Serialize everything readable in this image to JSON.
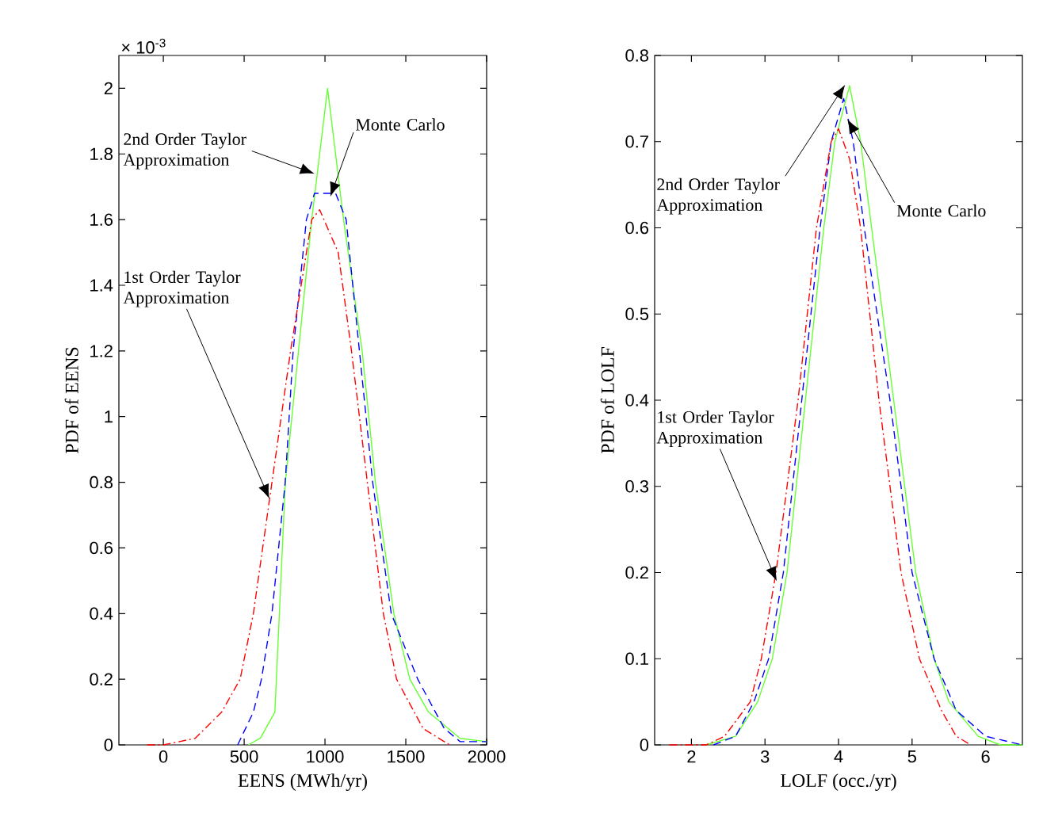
{
  "chart_data": [
    {
      "type": "line",
      "xlabel": "EENS (MWh/yr)",
      "ylabel": "PDF of EENS",
      "xlim": [
        -275,
        2000
      ],
      "ylim": [
        0,
        2.1
      ],
      "xticks": [
        0,
        500,
        1000,
        1500,
        2000
      ],
      "yticks": [
        0,
        0.2,
        0.4,
        0.6,
        0.8,
        1,
        1.2,
        1.4,
        1.6,
        1.8,
        2
      ],
      "marker": "none",
      "series": [
        {
          "color": "#66ff33",
          "line_style": "solid",
          "x": [
            525,
            600,
            690,
            755,
            836,
            918,
            1016,
            1115,
            1230,
            1312,
            1426,
            1525,
            1640,
            1836,
            2000
          ],
          "values": [
            0,
            0.02,
            0.1,
            0.8,
            1.2,
            1.6,
            2.0,
            1.6,
            1.2,
            0.8,
            0.4,
            0.2,
            0.1,
            0.02,
            0.01
          ]
        },
        {
          "color": "#0000ff",
          "line_style": "dashed",
          "x": [
            460,
            557,
            607,
            672,
            754,
            803,
            885,
            935,
            1066,
            1131,
            1213,
            1295,
            1410,
            1574,
            1738,
            1836,
            2000
          ],
          "values": [
            0,
            0.1,
            0.2,
            0.4,
            0.8,
            1.2,
            1.6,
            1.68,
            1.68,
            1.6,
            1.2,
            0.8,
            0.4,
            0.2,
            0.05,
            0.01,
            0.01
          ]
        },
        {
          "color": "#ff0000",
          "line_style": "dashdot",
          "x": [
            -100,
            0,
            197,
            361,
            475,
            557,
            672,
            787,
            918,
            967,
            1082,
            1164,
            1262,
            1361,
            1443,
            1607,
            1771
          ],
          "values": [
            0,
            0,
            0.02,
            0.1,
            0.2,
            0.4,
            0.8,
            1.2,
            1.6,
            1.63,
            1.5,
            1.2,
            0.8,
            0.4,
            0.2,
            0.05,
            0
          ]
        }
      ],
      "annotations": [
        "× 10$^{-3}$",
        {
          "text": "2nd Order Taylor Approximation",
          "x": 935,
          "y": 1.74
        },
        {
          "text": "Monte Carlo",
          "x": 1033,
          "y": 1.67
        },
        {
          "text": "1st Order Taylor Approximation",
          "x": 656,
          "y": 0.75
        }
      ]
    },
    {
      "type": "line",
      "xlabel": "LOLF (occ./yr)",
      "ylabel": "PDF of LOLF",
      "xlim": [
        1.5,
        6.5
      ],
      "ylim": [
        0,
        0.8
      ],
      "xticks": [
        2,
        3,
        4,
        5,
        6
      ],
      "yticks": [
        0,
        0.1,
        0.2,
        0.3,
        0.4,
        0.5,
        0.6,
        0.7,
        0.8
      ],
      "marker": "none",
      "series": [
        {
          "color": "#66ff33",
          "line_style": "solid",
          "x": [
            2.2,
            2.6,
            2.9,
            3.1,
            3.3,
            3.55,
            3.8,
            3.95,
            4.15,
            4.3,
            4.45,
            4.75,
            5.05,
            5.3,
            5.5,
            5.9,
            6.2,
            6.5
          ],
          "values": [
            0,
            0.01,
            0.05,
            0.1,
            0.2,
            0.4,
            0.6,
            0.7,
            0.765,
            0.7,
            0.6,
            0.4,
            0.2,
            0.1,
            0.05,
            0.01,
            0,
            0
          ]
        },
        {
          "color": "#0000ff",
          "line_style": "dashed",
          "x": [
            2.3,
            2.6,
            2.85,
            3.05,
            3.25,
            3.5,
            3.75,
            3.9,
            4.07,
            4.2,
            4.35,
            4.7,
            5.0,
            5.3,
            5.6,
            6.0,
            6.5
          ],
          "values": [
            0,
            0.01,
            0.05,
            0.1,
            0.2,
            0.4,
            0.6,
            0.7,
            0.75,
            0.7,
            0.6,
            0.4,
            0.2,
            0.1,
            0.04,
            0.01,
            0
          ]
        },
        {
          "color": "#ff0000",
          "line_style": "dashdot",
          "x": [
            1.7,
            2.2,
            2.45,
            2.8,
            2.95,
            3.15,
            3.45,
            3.7,
            3.9,
            4.0,
            4.15,
            4.3,
            4.55,
            4.85,
            5.1,
            5.4,
            5.6,
            5.8
          ],
          "values": [
            0,
            0,
            0.01,
            0.05,
            0.1,
            0.2,
            0.4,
            0.6,
            0.7,
            0.715,
            0.68,
            0.6,
            0.4,
            0.2,
            0.1,
            0.04,
            0.01,
            0
          ]
        }
      ],
      "annotations": [
        {
          "text": "2nd Order Taylor Approximation",
          "x": 4.09,
          "y": 0.766
        },
        {
          "text": "Monte Carlo",
          "x": 4.12,
          "y": 0.726
        },
        {
          "text": "1st Order Taylor Approximation",
          "x": 3.16,
          "y": 0.19
        }
      ]
    }
  ]
}
